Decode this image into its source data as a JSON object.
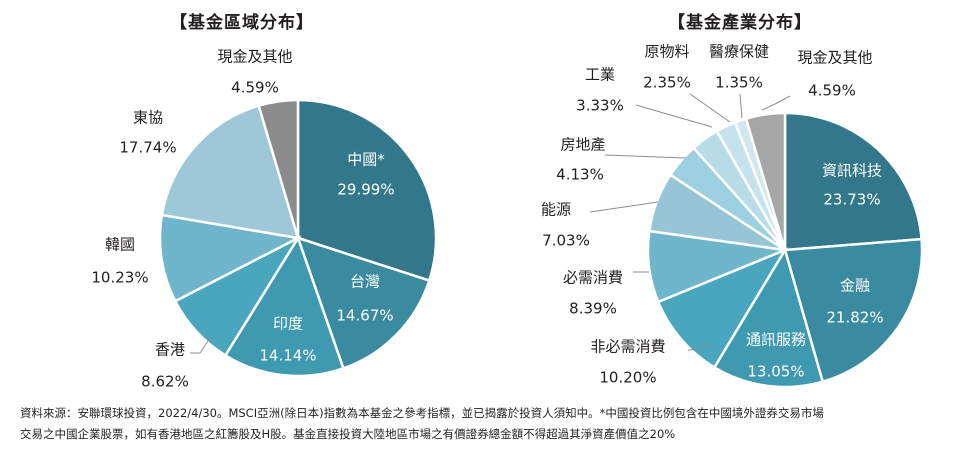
{
  "footnote": {
    "line1": "資料來源：安聯環球投資，2022/4/30。MSCI亞洲(除日本)指數為本基金之參考指標，並已揭露於投資人須知中。*中國投資比例包含在中國境外證券交易市場",
    "line2": "交易之中國企業股票，如有香港地區之紅籌股及H股。基金直接投資大陸地區市場之有價證券總金額不得超過其淨資產價值之20%"
  },
  "chart_data": [
    {
      "type": "pie",
      "title": "【基金區域分布】",
      "slices": [
        {
          "label": "中國*",
          "value": 29.99,
          "text": "29.99%",
          "color": "#33778a"
        },
        {
          "label": "台灣",
          "value": 14.67,
          "text": "14.67%",
          "color": "#3a8aa0"
        },
        {
          "label": "印度",
          "value": 14.14,
          "text": "14.14%",
          "color": "#3e99b1"
        },
        {
          "label": "香港",
          "value": 8.62,
          "text": "8.62%",
          "color": "#4aa6bf"
        },
        {
          "label": "韓國",
          "value": 10.23,
          "text": "10.23%",
          "color": "#6fb5cc"
        },
        {
          "label": "東協",
          "value": 17.74,
          "text": "17.74%",
          "color": "#9ec7d8"
        },
        {
          "label": "現金及其他",
          "value": 4.59,
          "text": "4.59%",
          "color": "#8b8b8b"
        }
      ]
    },
    {
      "type": "pie",
      "title": "【基金產業分布】",
      "slices": [
        {
          "label": "資訊科技",
          "value": 23.73,
          "text": "23.73%",
          "color": "#33778a"
        },
        {
          "label": "金融",
          "value": 21.82,
          "text": "21.82%",
          "color": "#3a8aa0"
        },
        {
          "label": "通訊服務",
          "value": 13.05,
          "text": "13.05%",
          "color": "#3e99b1"
        },
        {
          "label": "非必需消費",
          "value": 10.2,
          "text": "10.20%",
          "color": "#4aa6bf"
        },
        {
          "label": "必需消費",
          "value": 8.39,
          "text": "8.39%",
          "color": "#6fb5cc"
        },
        {
          "label": "能源",
          "value": 7.03,
          "text": "7.03%",
          "color": "#98c5d6"
        },
        {
          "label": "房地產",
          "value": 4.13,
          "text": "4.13%",
          "color": "#9ccfe0"
        },
        {
          "label": "工業",
          "value": 3.33,
          "text": "3.33%",
          "color": "#b7dce8"
        },
        {
          "label": "原物料",
          "value": 2.35,
          "text": "2.35%",
          "color": "#c6e2ec"
        },
        {
          "label": "醫療保健",
          "value": 1.35,
          "text": "1.35%",
          "color": "#d2e6ee"
        },
        {
          "label": "現金及其他",
          "value": 4.59,
          "text": "4.59%",
          "color": "#a6a6a6"
        }
      ]
    }
  ]
}
